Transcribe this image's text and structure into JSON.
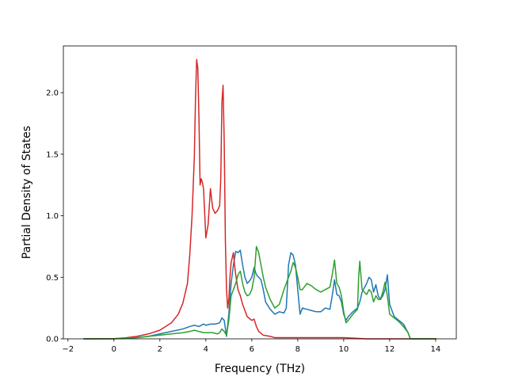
{
  "chart_data": {
    "type": "line",
    "xlabel": "Frequency (THz)",
    "ylabel": "Partial Density of States",
    "xlim": [
      -2.2,
      14.9
    ],
    "ylim": [
      0.0,
      2.38
    ],
    "xticks": [
      -2,
      0,
      2,
      4,
      6,
      8,
      10,
      12,
      14
    ],
    "xtick_labels": [
      "−2",
      "0",
      "2",
      "4",
      "6",
      "8",
      "10",
      "12",
      "14"
    ],
    "yticks": [
      0.0,
      0.5,
      1.0,
      1.5,
      2.0
    ],
    "ytick_labels": [
      "0.0",
      "0.5",
      "1.0",
      "1.5",
      "2.0"
    ],
    "grid": false,
    "legend": "none",
    "series": [
      {
        "color": "#1f77b4",
        "x": [
          -1.3,
          0.0,
          1.0,
          1.5,
          2.0,
          2.5,
          3.0,
          3.3,
          3.5,
          3.7,
          3.9,
          4.0,
          4.2,
          4.4,
          4.6,
          4.7,
          4.8,
          4.9,
          5.0,
          5.1,
          5.2,
          5.3,
          5.4,
          5.5,
          5.6,
          5.7,
          5.8,
          5.9,
          6.0,
          6.1,
          6.2,
          6.3,
          6.4,
          6.5,
          6.6,
          6.8,
          7.0,
          7.2,
          7.4,
          7.5,
          7.6,
          7.7,
          7.8,
          7.9,
          8.0,
          8.1,
          8.2,
          8.4,
          8.6,
          8.8,
          9.0,
          9.2,
          9.4,
          9.5,
          9.6,
          9.7,
          9.8,
          9.9,
          10.0,
          10.1,
          10.2,
          10.4,
          10.6,
          10.7,
          10.8,
          11.0,
          11.1,
          11.2,
          11.3,
          11.4,
          11.5,
          11.6,
          11.7,
          11.8,
          11.9,
          12.0,
          12.2,
          12.4,
          12.6,
          12.8,
          12.9,
          13.5,
          14.0
        ],
        "values": [
          0.0,
          0.0,
          0.01,
          0.02,
          0.04,
          0.06,
          0.08,
          0.1,
          0.11,
          0.1,
          0.12,
          0.11,
          0.12,
          0.12,
          0.13,
          0.17,
          0.15,
          0.02,
          0.2,
          0.45,
          0.6,
          0.71,
          0.7,
          0.72,
          0.6,
          0.5,
          0.45,
          0.47,
          0.5,
          0.58,
          0.52,
          0.5,
          0.48,
          0.4,
          0.3,
          0.24,
          0.2,
          0.22,
          0.21,
          0.25,
          0.6,
          0.7,
          0.68,
          0.6,
          0.4,
          0.2,
          0.25,
          0.24,
          0.23,
          0.22,
          0.22,
          0.25,
          0.24,
          0.35,
          0.48,
          0.36,
          0.35,
          0.3,
          0.2,
          0.15,
          0.18,
          0.22,
          0.25,
          0.3,
          0.38,
          0.45,
          0.5,
          0.48,
          0.38,
          0.44,
          0.35,
          0.32,
          0.35,
          0.4,
          0.52,
          0.28,
          0.18,
          0.15,
          0.12,
          0.05,
          0.0,
          0.0,
          0.0
        ]
      },
      {
        "color": "#d62728",
        "x": [
          -1.3,
          0.0,
          0.5,
          1.0,
          1.5,
          2.0,
          2.5,
          2.8,
          3.0,
          3.2,
          3.3,
          3.4,
          3.5,
          3.55,
          3.6,
          3.65,
          3.7,
          3.75,
          3.8,
          3.85,
          3.9,
          4.0,
          4.1,
          4.2,
          4.3,
          4.4,
          4.5,
          4.6,
          4.65,
          4.7,
          4.75,
          4.8,
          4.85,
          4.9,
          4.95,
          5.0,
          5.05,
          5.1,
          5.2,
          5.25,
          5.3,
          5.4,
          5.5,
          5.6,
          5.8,
          6.0,
          6.1,
          6.2,
          6.3,
          6.5,
          6.8,
          7.0,
          7.5,
          8.0,
          8.5,
          9.0,
          10.0,
          11.0,
          12.0,
          13.0,
          14.0
        ],
        "values": [
          0.0,
          0.002,
          0.008,
          0.02,
          0.04,
          0.07,
          0.13,
          0.2,
          0.29,
          0.45,
          0.68,
          1.0,
          1.48,
          1.95,
          2.27,
          2.2,
          1.8,
          1.25,
          1.3,
          1.27,
          1.22,
          0.82,
          0.93,
          1.22,
          1.06,
          1.02,
          1.04,
          1.08,
          1.3,
          1.92,
          2.06,
          1.6,
          0.8,
          0.4,
          0.25,
          0.32,
          0.5,
          0.62,
          0.7,
          0.6,
          0.52,
          0.4,
          0.35,
          0.28,
          0.18,
          0.15,
          0.16,
          0.1,
          0.06,
          0.03,
          0.02,
          0.01,
          0.01,
          0.01,
          0.01,
          0.01,
          0.01,
          0.0,
          0.0,
          0.0,
          0.0
        ]
      },
      {
        "color": "#2ca02c",
        "x": [
          -1.3,
          0.0,
          1.0,
          1.5,
          2.0,
          2.5,
          3.0,
          3.3,
          3.5,
          3.7,
          3.9,
          4.1,
          4.3,
          4.5,
          4.6,
          4.7,
          4.8,
          4.9,
          5.0,
          5.1,
          5.2,
          5.3,
          5.4,
          5.5,
          5.6,
          5.7,
          5.8,
          5.9,
          6.0,
          6.1,
          6.2,
          6.3,
          6.4,
          6.5,
          6.6,
          6.8,
          7.0,
          7.2,
          7.4,
          7.5,
          7.6,
          7.7,
          7.8,
          7.9,
          8.0,
          8.1,
          8.2,
          8.4,
          8.6,
          8.8,
          9.0,
          9.2,
          9.4,
          9.5,
          9.6,
          9.7,
          9.8,
          9.9,
          10.0,
          10.1,
          10.2,
          10.4,
          10.6,
          10.65,
          10.7,
          10.8,
          11.0,
          11.1,
          11.2,
          11.3,
          11.4,
          11.5,
          11.6,
          11.7,
          11.8,
          11.9,
          12.0,
          12.2,
          12.4,
          12.6,
          12.8,
          12.9,
          13.5,
          14.0
        ],
        "values": [
          0.0,
          0.0,
          0.01,
          0.02,
          0.03,
          0.04,
          0.05,
          0.06,
          0.07,
          0.06,
          0.05,
          0.05,
          0.05,
          0.04,
          0.05,
          0.08,
          0.06,
          0.03,
          0.15,
          0.35,
          0.4,
          0.45,
          0.52,
          0.55,
          0.45,
          0.38,
          0.35,
          0.36,
          0.4,
          0.5,
          0.75,
          0.7,
          0.6,
          0.5,
          0.42,
          0.32,
          0.25,
          0.28,
          0.4,
          0.45,
          0.5,
          0.55,
          0.62,
          0.58,
          0.5,
          0.4,
          0.4,
          0.45,
          0.43,
          0.4,
          0.38,
          0.4,
          0.42,
          0.52,
          0.64,
          0.45,
          0.42,
          0.35,
          0.22,
          0.13,
          0.15,
          0.2,
          0.24,
          0.5,
          0.63,
          0.4,
          0.36,
          0.4,
          0.38,
          0.3,
          0.35,
          0.32,
          0.32,
          0.38,
          0.46,
          0.35,
          0.2,
          0.17,
          0.14,
          0.1,
          0.05,
          0.0,
          0.0,
          0.0
        ]
      }
    ]
  }
}
